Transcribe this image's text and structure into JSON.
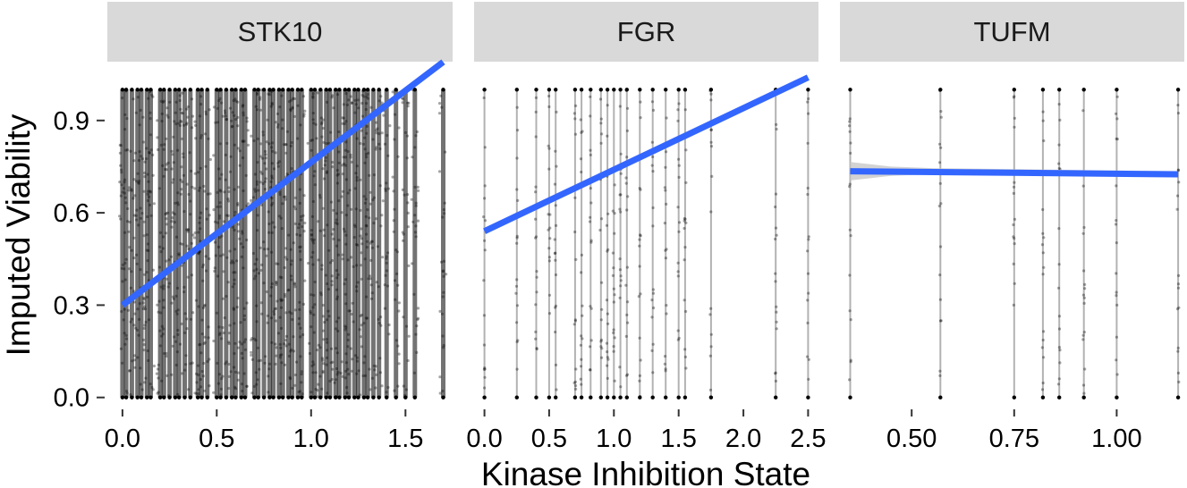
{
  "chart_data": {
    "type": "scatter",
    "xlabel": "Kinase Inhibition State",
    "ylabel": "Imputed Viability",
    "ylim": [
      -0.03,
      1.03
    ],
    "y_ticks": [
      0.0,
      0.3,
      0.6,
      0.9
    ],
    "y_tick_labels": [
      "0.0",
      "0.3",
      "0.6",
      "0.9"
    ],
    "grid": false,
    "legend": "none",
    "colors": {
      "points": "#000000",
      "fit_line": "#3366ff",
      "ci_band": "#c8c8c8",
      "strip": "#d9d9d9"
    },
    "facets": [
      {
        "label": "STK10",
        "xlim": [
          -0.08,
          1.75
        ],
        "x_ticks": [
          0.0,
          0.5,
          1.0,
          1.5
        ],
        "x_tick_labels": [
          "0.0",
          "0.5",
          "1.0",
          "1.5"
        ],
        "x_columns": [
          0.0,
          0.02,
          0.05,
          0.08,
          0.1,
          0.13,
          0.15,
          0.2,
          0.22,
          0.25,
          0.28,
          0.3,
          0.33,
          0.36,
          0.4,
          0.42,
          0.45,
          0.5,
          0.52,
          0.55,
          0.58,
          0.6,
          0.63,
          0.65,
          0.7,
          0.72,
          0.75,
          0.78,
          0.8,
          0.83,
          0.85,
          0.88,
          0.9,
          0.93,
          0.95,
          1.0,
          1.02,
          1.05,
          1.08,
          1.1,
          1.13,
          1.15,
          1.18,
          1.2,
          1.23,
          1.25,
          1.28,
          1.3,
          1.33,
          1.36,
          1.4,
          1.45,
          1.5,
          1.55,
          1.7
        ],
        "fit": {
          "x": [
            0.0,
            1.7
          ],
          "y": [
            0.3,
            1.09
          ]
        },
        "ci": null
      },
      {
        "label": "FGR",
        "xlim": [
          -0.08,
          2.58
        ],
        "x_ticks": [
          0.0,
          0.5,
          1.0,
          1.5,
          2.0,
          2.5
        ],
        "x_tick_labels": [
          "0.0",
          "0.5",
          "1.0",
          "1.5",
          "2.0",
          "2.5"
        ],
        "x_columns": [
          0.0,
          0.25,
          0.4,
          0.5,
          0.55,
          0.7,
          0.75,
          0.82,
          0.9,
          0.95,
          1.0,
          1.05,
          1.1,
          1.2,
          1.3,
          1.4,
          1.5,
          1.55,
          1.75,
          2.25,
          2.5
        ],
        "fit": {
          "x": [
            0.0,
            2.5
          ],
          "y": [
            0.54,
            1.04
          ]
        },
        "ci": null
      },
      {
        "label": "TUFM",
        "xlim": [
          0.325,
          1.165
        ],
        "x_ticks": [
          0.5,
          0.75,
          1.0
        ],
        "x_tick_labels": [
          "0.50",
          "0.75",
          "1.00"
        ],
        "x_columns": [
          0.35,
          0.57,
          0.75,
          0.82,
          0.86,
          0.92,
          1.0,
          1.15
        ],
        "fit": {
          "x": [
            0.35,
            1.15
          ],
          "y": [
            0.735,
            0.725
          ]
        },
        "ci": {
          "x": [
            0.35,
            0.45,
            0.55,
            1.15
          ],
          "upper": [
            0.765,
            0.75,
            0.745,
            0.735
          ],
          "lower": [
            0.705,
            0.72,
            0.725,
            0.715
          ]
        }
      }
    ]
  }
}
